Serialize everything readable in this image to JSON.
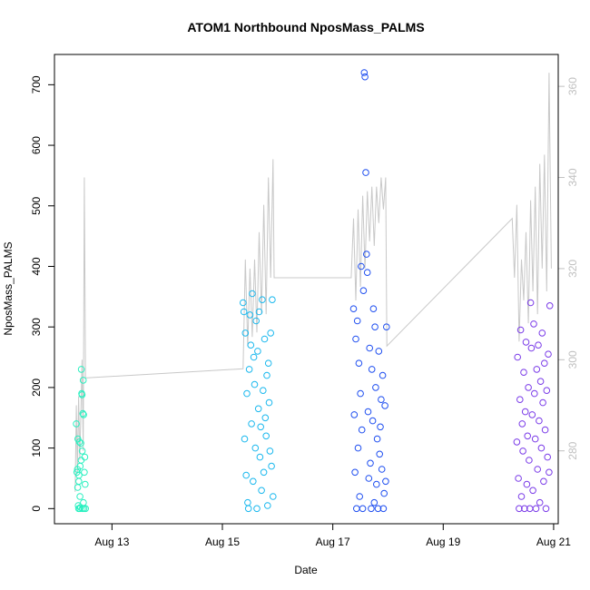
{
  "chart_data": {
    "type": "scatter",
    "title": "ATOM1 Northbound NposMass_PALMS",
    "xlabel": "Date",
    "ylabel": "NposMass_PALMS",
    "xlim": [
      "2016-08-11T23:00",
      "2016-08-21T02:00"
    ],
    "ylim": [
      -25,
      750
    ],
    "y2lim": [
      264,
      367
    ],
    "grid": false,
    "legend": "none",
    "x_ticks": [
      {
        "date": "2016-08-13",
        "label": "Aug 13"
      },
      {
        "date": "2016-08-15",
        "label": "Aug 15"
      },
      {
        "date": "2016-08-17",
        "label": "Aug 17"
      },
      {
        "date": "2016-08-19",
        "label": "Aug 19"
      },
      {
        "date": "2016-08-21",
        "label": "Aug 21"
      }
    ],
    "y_ticks": [
      0,
      100,
      200,
      300,
      400,
      500,
      600,
      700
    ],
    "y2_ticks": [
      280,
      300,
      320,
      340,
      360
    ],
    "series": [
      {
        "color": "#29f0c0",
        "x": [
          "2016-08-12T08:30",
          "2016-08-12T08:45",
          "2016-08-12T09:00",
          "2016-08-12T09:10",
          "2016-08-12T09:20",
          "2016-08-12T09:30",
          "2016-08-12T09:40",
          "2016-08-12T09:50",
          "2016-08-12T10:00",
          "2016-08-12T10:10",
          "2016-08-12T10:20",
          "2016-08-12T10:30",
          "2016-08-12T10:40",
          "2016-08-12T10:50",
          "2016-08-12T11:00",
          "2016-08-12T11:10",
          "2016-08-12T11:20",
          "2016-08-12T11:30",
          "2016-08-12T11:40",
          "2016-08-12T11:50",
          "2016-08-12T12:00",
          "2016-08-12T12:10",
          "2016-08-12T12:20",
          "2016-08-12T12:30",
          "2016-08-12T09:05",
          "2016-08-12T09:35",
          "2016-08-12T10:05",
          "2016-08-12T10:35",
          "2016-08-12T11:05",
          "2016-08-12T11:35"
        ],
        "y": [
          140,
          60,
          65,
          115,
          5,
          0,
          55,
          110,
          0,
          70,
          2,
          108,
          230,
          190,
          188,
          0,
          157,
          212,
          155,
          0,
          60,
          85,
          40,
          0,
          35,
          45,
          20,
          80,
          95,
          10
        ]
      },
      {
        "color": "#1ab8ee",
        "x": [
          "2016-08-15T09:00",
          "2016-08-15T09:20",
          "2016-08-15T09:40",
          "2016-08-15T10:00",
          "2016-08-15T10:20",
          "2016-08-15T10:40",
          "2016-08-15T11:00",
          "2016-08-15T11:20",
          "2016-08-15T11:40",
          "2016-08-15T12:00",
          "2016-08-15T12:20",
          "2016-08-15T12:40",
          "2016-08-15T13:00",
          "2016-08-15T13:20",
          "2016-08-15T13:40",
          "2016-08-15T14:00",
          "2016-08-15T14:20",
          "2016-08-15T14:40",
          "2016-08-15T15:00",
          "2016-08-15T15:20",
          "2016-08-15T15:40",
          "2016-08-15T16:00",
          "2016-08-15T16:20",
          "2016-08-15T16:40",
          "2016-08-15T17:00",
          "2016-08-15T17:20",
          "2016-08-15T17:40",
          "2016-08-15T18:00",
          "2016-08-15T18:20",
          "2016-08-15T18:40",
          "2016-08-15T19:00",
          "2016-08-15T19:20",
          "2016-08-15T19:40",
          "2016-08-15T20:00",
          "2016-08-15T20:20",
          "2016-08-15T20:40",
          "2016-08-15T21:00",
          "2016-08-15T21:20",
          "2016-08-15T21:40",
          "2016-08-15T22:00"
        ],
        "y": [
          340,
          325,
          115,
          290,
          55,
          190,
          10,
          0,
          230,
          320,
          270,
          140,
          355,
          45,
          250,
          205,
          100,
          310,
          0,
          260,
          165,
          325,
          85,
          135,
          30,
          345,
          195,
          60,
          280,
          150,
          120,
          220,
          5,
          240,
          175,
          95,
          290,
          70,
          345,
          20
        ]
      },
      {
        "color": "#1e4ef0",
        "x": [
          "2016-08-17T09:00",
          "2016-08-17T09:20",
          "2016-08-17T09:40",
          "2016-08-17T10:00",
          "2016-08-17T10:20",
          "2016-08-17T10:40",
          "2016-08-17T11:00",
          "2016-08-17T11:20",
          "2016-08-17T11:40",
          "2016-08-17T12:00",
          "2016-08-17T12:20",
          "2016-08-17T12:40",
          "2016-08-17T13:00",
          "2016-08-17T13:20",
          "2016-08-17T13:40",
          "2016-08-17T14:00",
          "2016-08-17T14:20",
          "2016-08-17T14:40",
          "2016-08-17T15:00",
          "2016-08-17T15:20",
          "2016-08-17T15:40",
          "2016-08-17T16:00",
          "2016-08-17T16:20",
          "2016-08-17T16:40",
          "2016-08-17T17:00",
          "2016-08-17T17:20",
          "2016-08-17T17:40",
          "2016-08-17T18:00",
          "2016-08-17T18:20",
          "2016-08-17T18:40",
          "2016-08-17T19:00",
          "2016-08-17T19:20",
          "2016-08-17T19:40",
          "2016-08-17T20:00",
          "2016-08-17T20:20",
          "2016-08-17T20:40",
          "2016-08-17T21:00",
          "2016-08-17T21:20",
          "2016-08-17T21:40",
          "2016-08-17T22:00",
          "2016-08-17T22:20",
          "2016-08-17T22:40",
          "2016-08-17T23:00",
          "2016-08-17T23:20"
        ],
        "y": [
          330,
          155,
          60,
          280,
          0,
          310,
          100,
          240,
          20,
          190,
          400,
          130,
          0,
          360,
          720,
          713,
          555,
          420,
          390,
          160,
          50,
          265,
          75,
          0,
          230,
          145,
          330,
          10,
          300,
          200,
          40,
          115,
          0,
          260,
          90,
          135,
          180,
          65,
          220,
          0,
          25,
          170,
          45,
          300
        ]
      },
      {
        "color": "#7a3be8",
        "x": [
          "2016-08-20T08:00",
          "2016-08-20T08:20",
          "2016-08-20T08:40",
          "2016-08-20T09:00",
          "2016-08-20T09:20",
          "2016-08-20T09:40",
          "2016-08-20T10:00",
          "2016-08-20T10:20",
          "2016-08-20T10:40",
          "2016-08-20T11:00",
          "2016-08-20T11:20",
          "2016-08-20T11:40",
          "2016-08-20T12:00",
          "2016-08-20T12:20",
          "2016-08-20T12:40",
          "2016-08-20T13:00",
          "2016-08-20T13:20",
          "2016-08-20T13:40",
          "2016-08-20T14:00",
          "2016-08-20T14:20",
          "2016-08-20T14:40",
          "2016-08-20T15:00",
          "2016-08-20T15:20",
          "2016-08-20T15:40",
          "2016-08-20T16:00",
          "2016-08-20T16:20",
          "2016-08-20T16:40",
          "2016-08-20T17:00",
          "2016-08-20T17:20",
          "2016-08-20T17:40",
          "2016-08-20T18:00",
          "2016-08-20T18:20",
          "2016-08-20T18:40",
          "2016-08-20T19:00",
          "2016-08-20T19:20",
          "2016-08-20T19:40",
          "2016-08-20T20:00",
          "2016-08-20T20:20",
          "2016-08-20T20:40",
          "2016-08-20T21:00",
          "2016-08-20T21:20",
          "2016-08-20T21:40",
          "2016-08-20T22:00",
          "2016-08-20T22:20"
        ],
        "y": [
          110,
          250,
          50,
          0,
          180,
          295,
          20,
          140,
          95,
          225,
          0,
          160,
          275,
          40,
          120,
          200,
          80,
          0,
          340,
          265,
          155,
          30,
          305,
          190,
          115,
          0,
          230,
          65,
          270,
          145,
          10,
          210,
          100,
          290,
          175,
          45,
          240,
          130,
          0,
          195,
          85,
          255,
          60,
          335
        ]
      }
    ],
    "secondary_line": {
      "color": "#c8c8c8",
      "x": [
        "2016-08-12T08:00",
        "2016-08-12T08:30",
        "2016-08-12T09:00",
        "2016-08-12T09:30",
        "2016-08-12T10:00",
        "2016-08-12T10:30",
        "2016-08-12T11:00",
        "2016-08-12T11:30",
        "2016-08-12T12:00",
        "2016-08-12T12:30",
        "2016-08-15T09:00",
        "2016-08-15T10:00",
        "2016-08-15T11:00",
        "2016-08-15T12:00",
        "2016-08-15T13:00",
        "2016-08-15T14:00",
        "2016-08-15T15:00",
        "2016-08-15T16:00",
        "2016-08-15T17:00",
        "2016-08-15T18:00",
        "2016-08-15T19:00",
        "2016-08-15T20:00",
        "2016-08-15T21:00",
        "2016-08-15T22:00",
        "2016-08-15T22:30",
        "2016-08-17T08:00",
        "2016-08-17T09:00",
        "2016-08-17T10:00",
        "2016-08-17T11:00",
        "2016-08-17T12:00",
        "2016-08-17T13:00",
        "2016-08-17T14:00",
        "2016-08-17T15:00",
        "2016-08-17T16:00",
        "2016-08-17T17:00",
        "2016-08-17T18:00",
        "2016-08-17T19:00",
        "2016-08-17T20:00",
        "2016-08-17T21:00",
        "2016-08-17T22:00",
        "2016-08-17T23:00",
        "2016-08-17T23:30",
        "2016-08-20T06:00",
        "2016-08-20T07:00",
        "2016-08-20T08:00",
        "2016-08-20T09:00",
        "2016-08-20T10:00",
        "2016-08-20T11:00",
        "2016-08-20T12:00",
        "2016-08-20T13:00",
        "2016-08-20T14:00",
        "2016-08-20T15:00",
        "2016-08-20T16:00",
        "2016-08-20T17:00",
        "2016-08-20T18:00",
        "2016-08-20T19:00",
        "2016-08-20T20:00",
        "2016-08-20T21:00",
        "2016-08-20T22:00",
        "2016-08-20T23:00"
      ],
      "y": [
        271,
        290,
        275,
        292,
        278,
        288,
        300,
        280,
        340,
        296,
        298,
        322,
        303,
        320,
        305,
        322,
        306,
        328,
        310,
        334,
        310,
        340,
        318,
        344,
        318,
        318,
        331,
        313,
        333,
        316,
        336,
        320,
        337,
        326,
        338,
        325,
        338,
        330,
        340,
        333,
        340,
        303,
        331,
        318,
        334,
        304,
        322,
        313,
        328,
        308,
        335,
        315,
        338,
        310,
        343,
        320,
        345,
        315,
        363,
        320
      ]
    }
  }
}
